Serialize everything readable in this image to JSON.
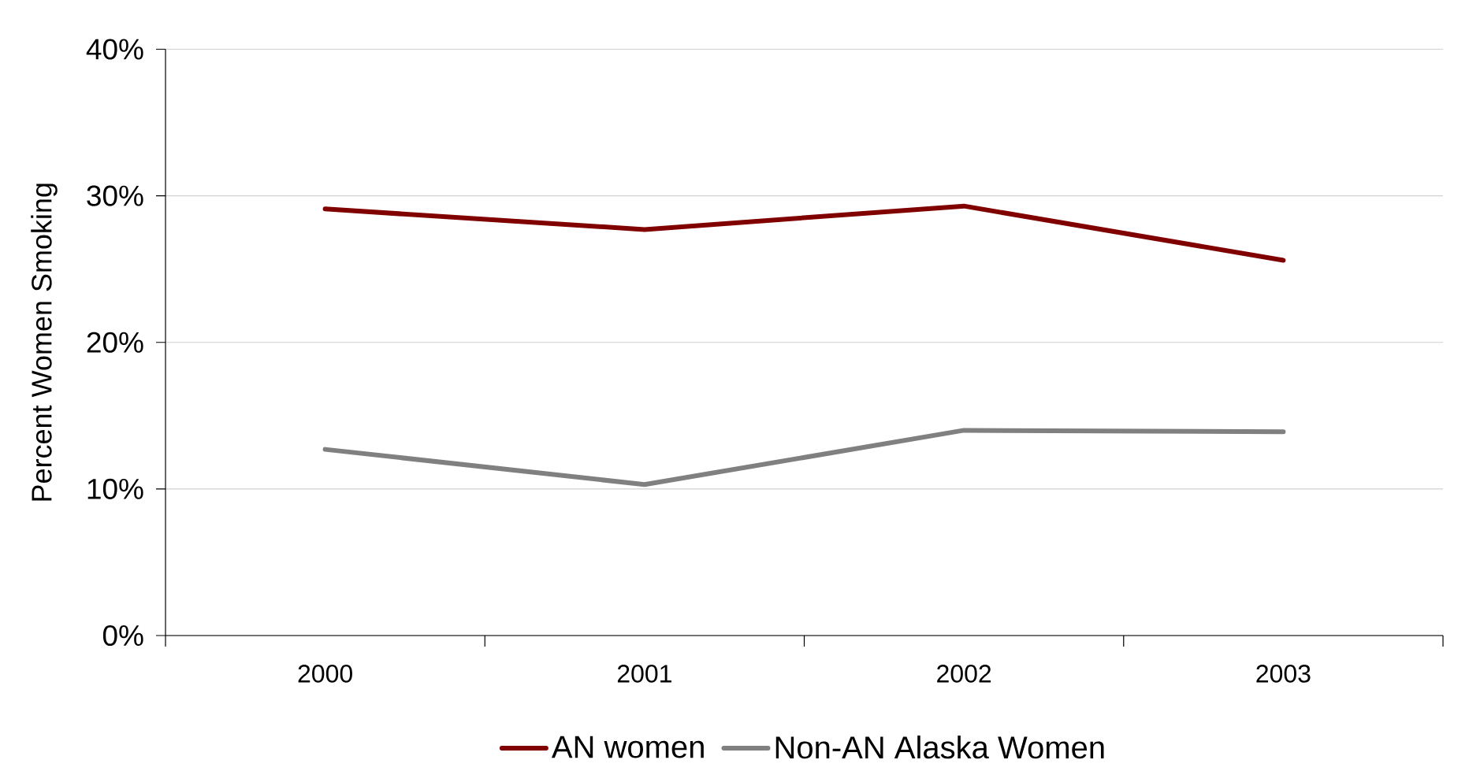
{
  "chart_data": {
    "type": "line",
    "ylabel": "Percent Women Smoking",
    "categories": [
      "2000",
      "2001",
      "2002",
      "2003"
    ],
    "series": [
      {
        "name": "AN women",
        "color": "#800000",
        "values": [
          29.1,
          27.7,
          29.3,
          25.6
        ]
      },
      {
        "name": "Non-AN Alaska Women",
        "color": "#808080",
        "values": [
          12.7,
          10.3,
          14.0,
          13.9
        ]
      }
    ],
    "ylim": [
      0,
      40
    ],
    "yticks": [
      {
        "value": 0,
        "label": "0%"
      },
      {
        "value": 10,
        "label": "10%"
      },
      {
        "value": 20,
        "label": "20%"
      },
      {
        "value": 30,
        "label": "30%"
      },
      {
        "value": 40,
        "label": "40%"
      }
    ],
    "grid": "y",
    "legend": "bottom",
    "marker": "none",
    "line_style": "solid"
  }
}
